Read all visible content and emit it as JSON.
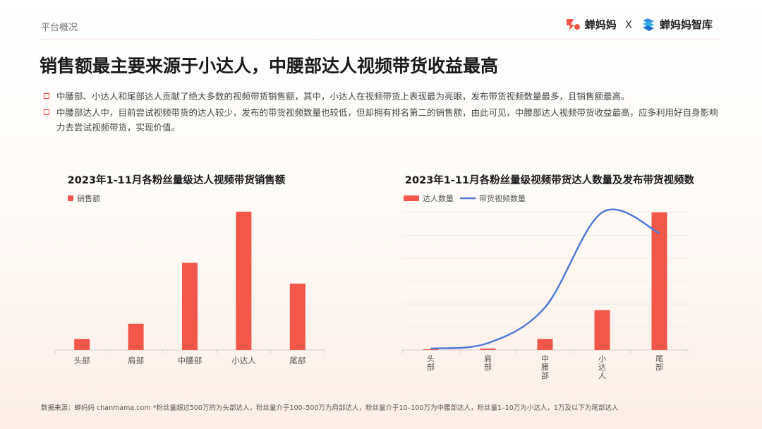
{
  "header": {
    "section_label": "平台概况",
    "brand_left": "蝉妈妈",
    "brand_sep": "X",
    "brand_right": "蝉妈妈智库"
  },
  "title": "销售额最主要来源于小达人，中腰部达人视频带货收益最高",
  "bullets": [
    "中腰部、小达人和尾部达人贡献了绝大多数的视频带货销售额，其中，小达人在视频带货上表现最为亮眼，发布带货视频数量最多，且销售额最高。",
    "中腰部达人中，目前尝试视频带货的达人较少，发布的带货视频数量也较低，但却拥有排名第二的销售额，由此可见，中腰部达人视频带货收益最高，应多利用好自身影响力去尝试视频带货，实现价值。"
  ],
  "footer": "数据来源：蝉妈妈 chanmama.com *粉丝量超过500万的为头部达人，粉丝量介于100–500万为肩部达人，粉丝量介于10–100万为中腰部达人，粉丝量1–10万为小达人，1万及以下为尾部达人",
  "colors": {
    "bar": "#f2574a",
    "line": "#4f7bd9",
    "accent": "#e8473e"
  },
  "chart_data": [
    {
      "type": "bar",
      "title": "2023年1-11月各粉丝量级达人视频带货销售额",
      "categories": [
        "头部",
        "肩部",
        "中腰部",
        "小达人",
        "尾部"
      ],
      "series": [
        {
          "name": "销售额",
          "values": [
            8,
            19,
            63,
            100,
            48
          ]
        }
      ],
      "ylim": [
        0,
        100
      ],
      "grid": false,
      "legend": "top-left"
    },
    {
      "type": "bar+line",
      "title": "2023年1-11月各粉丝量级视频带货达人数量及发布带货视频数",
      "categories": [
        "头部",
        "肩部",
        "中腰部",
        "小达人",
        "尾部"
      ],
      "series": [
        {
          "name": "达人数量",
          "type": "bar",
          "values": [
            0.5,
            1,
            8,
            29,
            100
          ]
        },
        {
          "name": "带货视频数量",
          "type": "line",
          "values": [
            1,
            5,
            31,
            100,
            85
          ]
        }
      ],
      "ylim": [
        0,
        100
      ],
      "grid": true,
      "legend": "top-left"
    }
  ]
}
